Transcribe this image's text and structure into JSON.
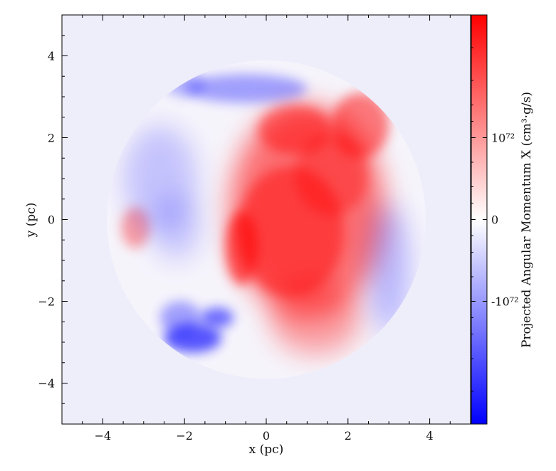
{
  "chart_data": {
    "type": "heatmap",
    "title": "",
    "xlabel": "x (pc)",
    "ylabel": "y (pc)",
    "xlim": [
      -5,
      5
    ],
    "ylim": [
      -5,
      5
    ],
    "x_ticks": [
      -4,
      -2,
      0,
      2,
      4
    ],
    "y_ticks": [
      -4,
      -2,
      0,
      2,
      4
    ],
    "x_tick_labels": [
      "−4",
      "−2",
      "0",
      "2",
      "4"
    ],
    "y_tick_labels": [
      "−4",
      "−2",
      "0",
      "2",
      "4"
    ],
    "cloud_radius_pc": 3.9,
    "background_color": "#eeeefb",
    "colormap": "bwr",
    "colormap_colors": {
      "negative": "#0000ff",
      "zero": "#ffffff",
      "positive": "#ff0000"
    },
    "colorbar": {
      "label": "Projected Angular Momentum X  (cm³·g/s)",
      "scale": "symlog",
      "tick_labels": [
        "10⁷²",
        "0",
        "-10⁷²"
      ],
      "tick_values": [
        1,
        0,
        -1
      ]
    },
    "features": [
      {
        "name": "red-lobe",
        "sign": "positive",
        "center": [
          1.0,
          0.2
        ]
      },
      {
        "name": "red-edge-upper",
        "sign": "positive",
        "center": [
          2.3,
          2.3
        ]
      },
      {
        "name": "red-blob-left",
        "sign": "positive",
        "center": [
          -3.2,
          -0.2
        ]
      },
      {
        "name": "blue-arc-top",
        "sign": "negative",
        "center": [
          -0.5,
          3.2
        ]
      },
      {
        "name": "blue-filament-bottom-left",
        "sign": "negative",
        "center": [
          -1.8,
          -2.9
        ]
      },
      {
        "name": "blue-edge-right",
        "sign": "negative",
        "center": [
          3.0,
          -1.2
        ]
      },
      {
        "name": "blue-haze-left",
        "sign": "negative",
        "center": [
          -2.6,
          1.0
        ]
      }
    ]
  }
}
